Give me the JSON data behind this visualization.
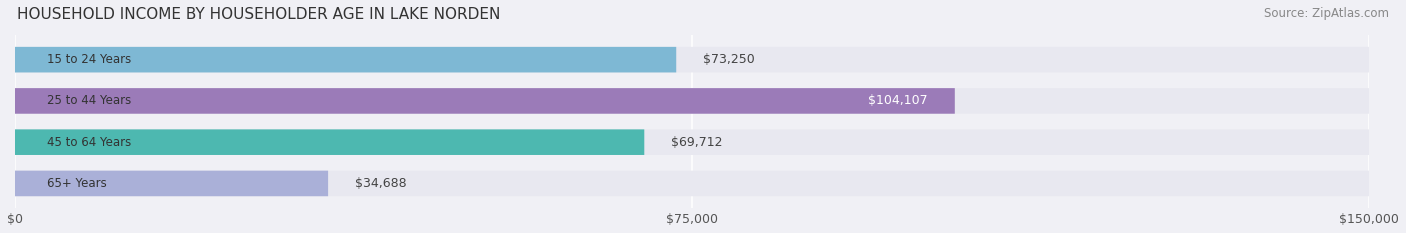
{
  "title": "HOUSEHOLD INCOME BY HOUSEHOLDER AGE IN LAKE NORDEN",
  "source": "Source: ZipAtlas.com",
  "categories": [
    "15 to 24 Years",
    "25 to 44 Years",
    "45 to 64 Years",
    "65+ Years"
  ],
  "values": [
    73250,
    104107,
    69712,
    34688
  ],
  "bar_colors": [
    "#7eb8d4",
    "#9b7bb8",
    "#4db8b0",
    "#aab0d8"
  ],
  "bar_labels": [
    "$73,250",
    "$104,107",
    "$69,712",
    "$34,688"
  ],
  "label_colors": [
    "#444444",
    "#ffffff",
    "#444444",
    "#444444"
  ],
  "label_inside": [
    false,
    true,
    false,
    false
  ],
  "xlim": [
    0,
    150000
  ],
  "xticks": [
    0,
    75000,
    150000
  ],
  "xticklabels": [
    "$0",
    "$75,000",
    "$150,000"
  ],
  "background_color": "#f0f0f5",
  "bar_bg_color": "#e8e8f0",
  "title_fontsize": 11,
  "source_fontsize": 8.5,
  "tick_fontsize": 9,
  "label_fontsize": 9,
  "cat_fontsize": 8.5
}
